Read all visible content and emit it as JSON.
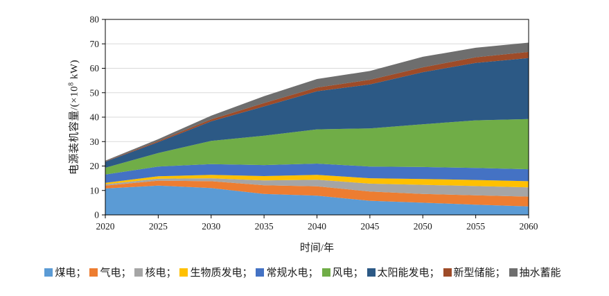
{
  "figure": {
    "background": "#ffffff"
  },
  "colors": {
    "grid": "#d9d9d9",
    "axis": "#000000",
    "text": "#1a1a1a"
  },
  "chart_data": {
    "type": "area",
    "stacked": true,
    "title": "",
    "xlabel": "时间/年",
    "ylabel_parts": {
      "prefix": "电源装机容量/(×10",
      "sup": "8",
      "suffix": " kW)"
    },
    "ylim": [
      0,
      80
    ],
    "xlim": [
      2020,
      2060
    ],
    "y_ticks": [
      0,
      10,
      20,
      30,
      40,
      50,
      60,
      70,
      80
    ],
    "x_ticks": [
      2020,
      2025,
      2030,
      2035,
      2040,
      2045,
      2050,
      2055,
      2060
    ],
    "grid": "horizontal",
    "legend_position": "bottom",
    "legend_separator": "；",
    "x": [
      2020,
      2025,
      2030,
      2035,
      2040,
      2045,
      2050,
      2055,
      2060
    ],
    "series": [
      {
        "key": "coal",
        "name": "煤电",
        "color": "#5b9bd5",
        "values": [
          10.8,
          12.0,
          11.0,
          8.6,
          7.9,
          5.8,
          5.0,
          4.2,
          3.5
        ]
      },
      {
        "key": "gas",
        "name": "气电",
        "color": "#ed7d31",
        "values": [
          1.2,
          2.0,
          2.8,
          3.5,
          3.8,
          3.8,
          3.6,
          3.8,
          4.0
        ]
      },
      {
        "key": "nuclear",
        "name": "核电",
        "color": "#a5a5a5",
        "values": [
          0.5,
          0.8,
          1.2,
          2.0,
          2.7,
          3.2,
          3.7,
          3.8,
          3.8
        ]
      },
      {
        "key": "biomass",
        "name": "生物质发电",
        "color": "#ffc000",
        "values": [
          0.6,
          1.0,
          1.4,
          1.8,
          2.0,
          2.2,
          2.4,
          2.5,
          2.5
        ]
      },
      {
        "key": "hydro",
        "name": "常规水电",
        "color": "#4472c4",
        "values": [
          3.4,
          4.0,
          4.4,
          4.5,
          4.6,
          4.8,
          4.9,
          4.9,
          4.9
        ]
      },
      {
        "key": "wind",
        "name": "风电",
        "color": "#70ad47",
        "values": [
          2.8,
          5.5,
          9.5,
          12.0,
          14.0,
          15.6,
          17.5,
          19.5,
          20.5
        ]
      },
      {
        "key": "solar",
        "name": "太阳能发电",
        "color": "#2c5985",
        "values": [
          2.5,
          4.5,
          8.0,
          12.0,
          15.6,
          18.0,
          21.3,
          23.5,
          25.0
        ]
      },
      {
        "key": "new-storage",
        "name": "新型储能",
        "color": "#9e4b28",
        "values": [
          0.1,
          0.4,
          0.8,
          1.4,
          1.5,
          1.9,
          2.0,
          2.3,
          2.5
        ]
      },
      {
        "key": "pumped-storage",
        "name": "抽水蓄能",
        "color": "#6e6e6e",
        "values": [
          0.3,
          0.8,
          1.5,
          2.8,
          3.5,
          3.6,
          4.3,
          3.9,
          3.8
        ]
      }
    ]
  }
}
